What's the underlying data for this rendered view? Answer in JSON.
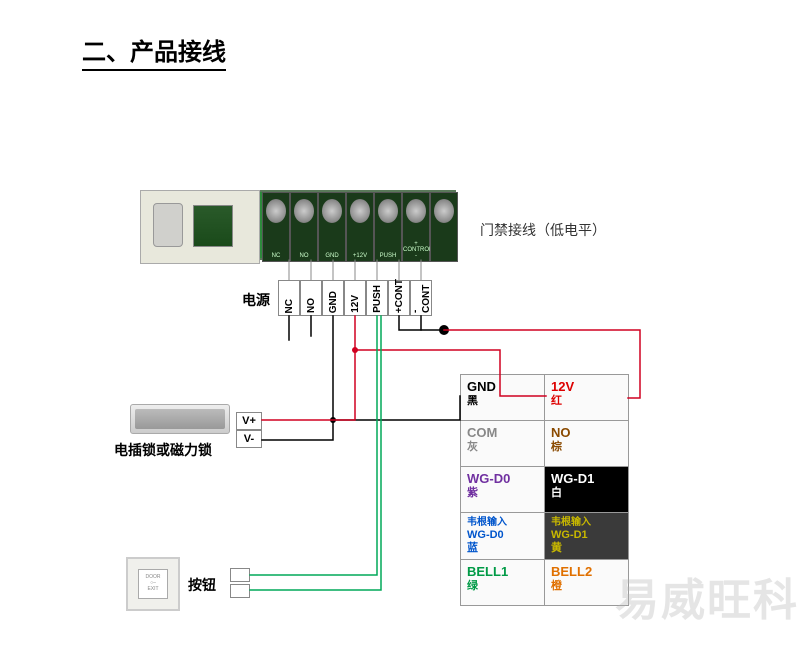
{
  "title": "二、产品接线",
  "door_label": "门禁接线（低电平）",
  "terminals": [
    "NC",
    "NO",
    "GND",
    "12V",
    "PUSH",
    "+CONT",
    "-CONT"
  ],
  "screw_labels": [
    "NC",
    "NO",
    "GND",
    "+12V",
    "PUSH",
    "+ CONTROL -",
    ""
  ],
  "labels": {
    "power": "电源",
    "lock": "电插锁或磁力锁",
    "vplus": "V+",
    "vminus": "V-",
    "button": "按钮",
    "door_text": "DOOR",
    "exit_text": "EXIT"
  },
  "table": [
    [
      {
        "l1": "GND",
        "l2": "黑",
        "fg": "#000",
        "bg": "#fafafa"
      },
      {
        "l1": "12V",
        "l2": "红",
        "fg": "#d00",
        "bg": "#fafafa"
      }
    ],
    [
      {
        "l1": "COM",
        "l2": "灰",
        "fg": "#888",
        "bg": "#fafafa"
      },
      {
        "l1": "NO",
        "l2": "棕",
        "fg": "#8a4a00",
        "bg": "#fafafa"
      }
    ],
    [
      {
        "l1": "WG-D0",
        "l2": "紫",
        "fg": "#7030a0",
        "bg": "#fafafa"
      },
      {
        "l1": "WG-D1",
        "l2": "白",
        "fg": "#fff",
        "bg": "#000"
      }
    ],
    [
      {
        "l1": "韦根输入",
        "l2": "WG-D0",
        "l3": "蓝",
        "fg": "#0055cc",
        "bg": "#fafafa",
        "small": true
      },
      {
        "l1": "韦根输入",
        "l2": "WG-D1",
        "l3": "黄",
        "fg": "#c8b800",
        "bg": "#3a3a3a",
        "small": true
      }
    ],
    [
      {
        "l1": "BELL1",
        "l2": "绿",
        "fg": "#009a46",
        "bg": "#fafafa"
      },
      {
        "l1": "BELL2",
        "l2": "橙",
        "fg": "#e07000",
        "bg": "#fafafa"
      }
    ]
  ],
  "wires": {
    "colors": {
      "red": "#d00020",
      "black": "#000000",
      "green": "#00a858",
      "grey": "#888888"
    },
    "line_width": 1.5
  },
  "watermark": "易威旺科"
}
